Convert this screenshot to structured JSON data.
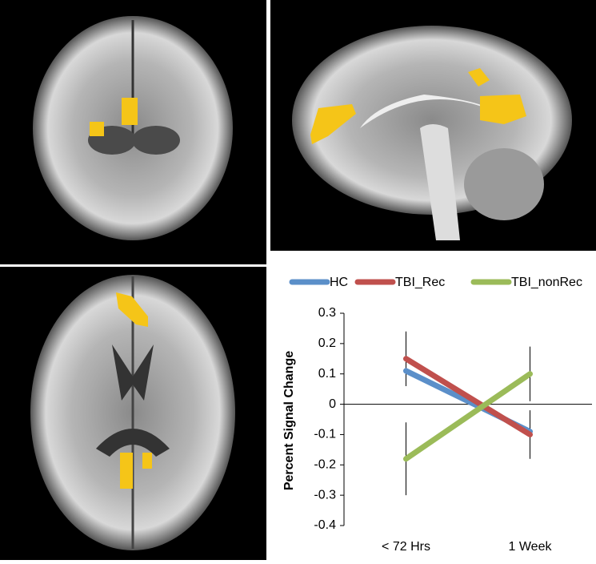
{
  "chart_data": {
    "type": "line",
    "ylabel": "Percent Signal Change",
    "categories": [
      "< 72 Hrs",
      "1 Week"
    ],
    "series": [
      {
        "name": "HC",
        "color": "#5b8fc9",
        "values": [
          0.11,
          -0.09
        ],
        "errors": [
          0.05,
          0.05
        ]
      },
      {
        "name": "TBI_Rec",
        "color": "#c0504d",
        "values": [
          0.15,
          -0.1
        ],
        "errors": [
          0.09,
          0.08
        ]
      },
      {
        "name": "TBI_nonRec",
        "color": "#9bbb59",
        "values": [
          -0.18,
          0.1
        ],
        "errors": [
          0.12,
          0.09
        ]
      }
    ],
    "ylim": [
      -0.4,
      0.3
    ],
    "yticks": [
      0.3,
      0.2,
      0.1,
      0,
      -0.1,
      -0.2,
      -0.3,
      -0.4
    ],
    "legend": "top",
    "grid": false
  }
}
